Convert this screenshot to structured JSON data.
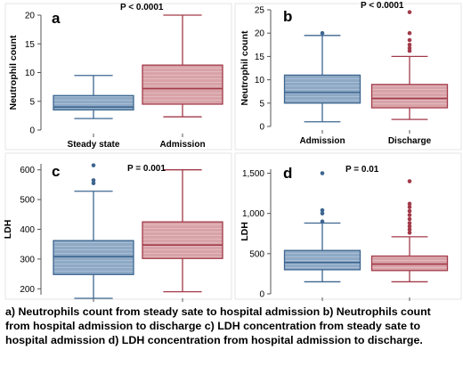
{
  "colors": {
    "blue_fill": "#8ea9c5",
    "blue_stroke": "#3d6690",
    "red_fill": "#d8a3a8",
    "red_stroke": "#a23a49",
    "axis": "#555555",
    "hatch_blue": "#a9bed4",
    "hatch_red": "#e3b9bd"
  },
  "chart_data": [
    {
      "type": "box",
      "panel_label": "a",
      "p_value": "P < 0.0001",
      "ylabel": "Neutrophil count",
      "ylim": [
        0,
        20
      ],
      "yticks": [
        0,
        5,
        10,
        15,
        20
      ],
      "ytick_labels": [
        "0",
        "5",
        "10",
        "15",
        "20"
      ],
      "categories": [
        "Steady state",
        "Admission"
      ],
      "boxes": [
        {
          "name": "Steady state",
          "color": "blue",
          "min": 2,
          "q1": 3.5,
          "median": 4,
          "q3": 6,
          "max": 9.5,
          "outliers": []
        },
        {
          "name": "Admission",
          "color": "red",
          "min": 2.3,
          "q1": 4.5,
          "median": 7.2,
          "q3": 11.3,
          "max": 20,
          "outliers": []
        }
      ]
    },
    {
      "type": "box",
      "panel_label": "b",
      "p_value": "P < 0.0001",
      "ylabel": "Neutrophil count",
      "ylim": [
        0,
        25
      ],
      "yticks": [
        0,
        5,
        10,
        15,
        20,
        25
      ],
      "ytick_labels": [
        "0",
        "5",
        "10",
        "15",
        "20",
        "25"
      ],
      "categories": [
        "Admission",
        "Discharge"
      ],
      "boxes": [
        {
          "name": "Admission",
          "color": "blue",
          "min": 1,
          "q1": 5,
          "median": 7.3,
          "q3": 11,
          "max": 19.5,
          "outliers": [
            20
          ]
        },
        {
          "name": "Discharge",
          "color": "red",
          "min": 1.5,
          "q1": 4,
          "median": 6,
          "q3": 9,
          "max": 15,
          "outliers": [
            16.2,
            16.8,
            17.5,
            18.5,
            20,
            24.5
          ]
        }
      ]
    },
    {
      "type": "box",
      "panel_label": "c",
      "p_value": "P = 0.001",
      "ylabel": "LDH",
      "ylim": [
        180,
        620
      ],
      "yticks": [
        200,
        300,
        400,
        500,
        600
      ],
      "ytick_labels": [
        "200",
        "300",
        "400",
        "500",
        "600"
      ],
      "categories": [
        "Steady state",
        "Admission"
      ],
      "boxes": [
        {
          "name": "Steady state",
          "color": "blue",
          "min": 168,
          "q1": 248,
          "median": 308,
          "q3": 362,
          "max": 528,
          "outliers": [
            555,
            565,
            615
          ]
        },
        {
          "name": "Admission",
          "color": "red",
          "min": 190,
          "q1": 302,
          "median": 347,
          "q3": 425,
          "max": 600,
          "outliers": []
        }
      ]
    },
    {
      "type": "box",
      "panel_label": "d",
      "p_value": "P = 0.01",
      "ylabel": "LDH",
      "ylim": [
        0,
        1550
      ],
      "yticks": [
        0,
        500,
        1000,
        1500
      ],
      "ytick_labels": [
        "0",
        "500",
        "1,000",
        "1,500"
      ],
      "categories": [
        "Admission",
        "Discharge"
      ],
      "boxes": [
        {
          "name": "Admission",
          "color": "blue",
          "min": 150,
          "q1": 300,
          "median": 390,
          "q3": 540,
          "max": 880,
          "outliers": [
            900,
            1000,
            1040,
            1500
          ]
        },
        {
          "name": "Discharge",
          "color": "red",
          "min": 150,
          "q1": 290,
          "median": 370,
          "q3": 470,
          "max": 710,
          "outliers": [
            760,
            800,
            840,
            880,
            930,
            980,
            1030,
            1080,
            1120,
            1400
          ]
        }
      ]
    }
  ],
  "caption": "a) Neutrophils count from steady sate to hospital admission b) Neutrophils count\nfrom hospital admission to discharge c) LDH concentration from steady sate to\nhospital admission  d) LDH concentration from hospital admission to discharge."
}
